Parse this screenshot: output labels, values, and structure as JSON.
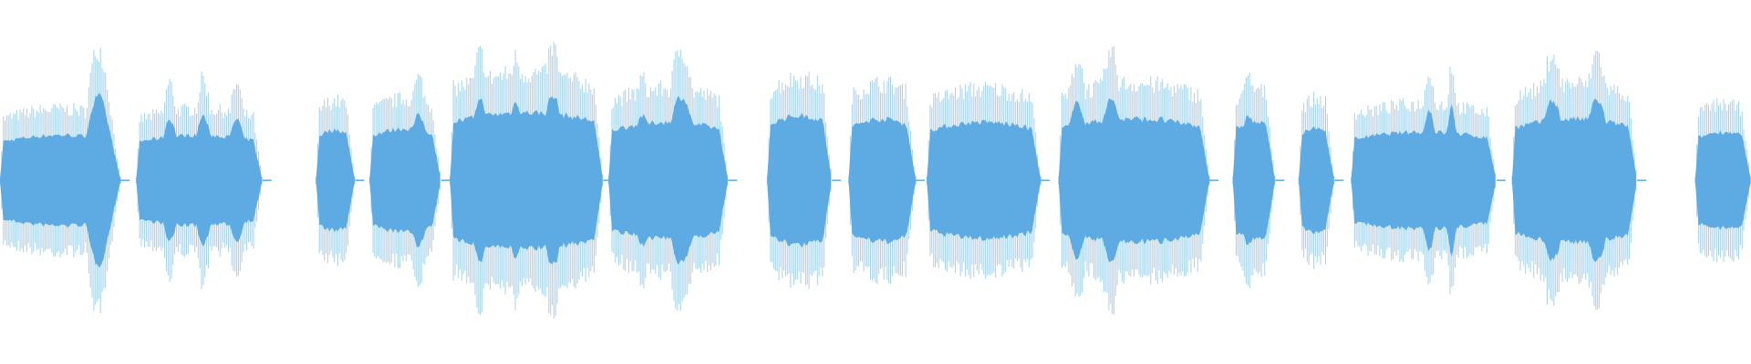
{
  "waveform": {
    "color": "#5dabe2"
  }
}
